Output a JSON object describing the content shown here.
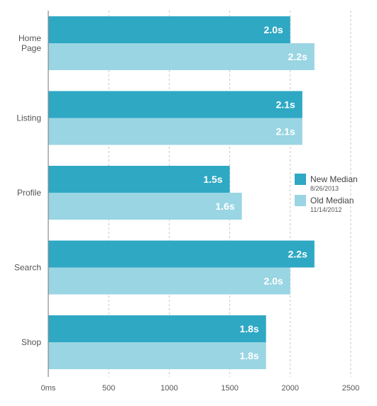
{
  "chart_data": {
    "type": "bar",
    "orientation": "horizontal",
    "categories": [
      [
        "Home",
        "Page"
      ],
      [
        "Listing"
      ],
      [
        "Profile"
      ],
      [
        "Search"
      ],
      [
        "Shop"
      ]
    ],
    "series": [
      {
        "name": "New Median",
        "date": "8/26/2013",
        "color": "#2fa8c4",
        "values": [
          2000,
          2100,
          1500,
          2200,
          1800
        ],
        "labels": [
          "2.0s",
          "2.1s",
          "1.5s",
          "2.2s",
          "1.8s"
        ]
      },
      {
        "name": "Old Median",
        "date": "11/14/2012",
        "color": "#9ad5e3",
        "values": [
          2200,
          2100,
          1600,
          2000,
          1800
        ],
        "labels": [
          "2.2s",
          "2.1s",
          "1.6s",
          "2.0s",
          "1.8s"
        ]
      }
    ],
    "xticks": [
      0,
      500,
      1000,
      1500,
      2000,
      2500
    ],
    "xtick_labels": [
      "0ms",
      "500",
      "1000",
      "1500",
      "2000",
      "2500"
    ],
    "xlim": [
      0,
      2500
    ],
    "grid": "vertical dashed",
    "legend_position": "right"
  }
}
